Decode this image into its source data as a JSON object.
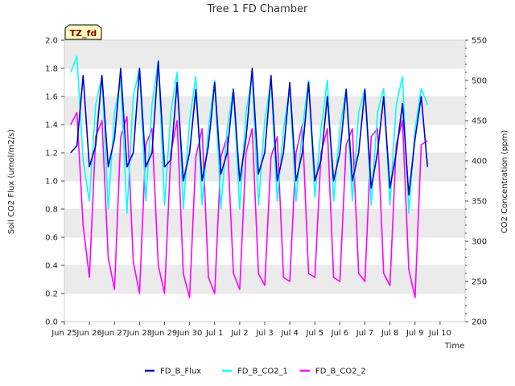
{
  "chart_data": {
    "type": "line",
    "title": "Tree 1 FD Chamber",
    "badge": "TZ_fd",
    "xlabel": "Time",
    "ylabel_left": "Soil CO2 Flux (umol/m2/s)",
    "ylabel_right": "CO2 Concentration (ppm)",
    "xlim": [
      0,
      16
    ],
    "ylim_left": [
      0.0,
      2.0
    ],
    "ylim_right": [
      200,
      550
    ],
    "x_ticks": [
      {
        "x": 0,
        "label": "Jun 25"
      },
      {
        "x": 1,
        "label": "Jun 26"
      },
      {
        "x": 2,
        "label": "Jun 27"
      },
      {
        "x": 3,
        "label": "Jun 28"
      },
      {
        "x": 4,
        "label": "Jun 29"
      },
      {
        "x": 5,
        "label": "Jun 30"
      },
      {
        "x": 6,
        "label": "Jul 1"
      },
      {
        "x": 7,
        "label": "Jul 2"
      },
      {
        "x": 8,
        "label": "Jul 3"
      },
      {
        "x": 9,
        "label": "Jul 4"
      },
      {
        "x": 10,
        "label": "Jul 5"
      },
      {
        "x": 11,
        "label": "Jul 6"
      },
      {
        "x": 12,
        "label": "Jul 7"
      },
      {
        "x": 13,
        "label": "Jul 8"
      },
      {
        "x": 14,
        "label": "Jul 9"
      },
      {
        "x": 15,
        "label": "Jul 10"
      }
    ],
    "y_left_ticks": [
      "0.0",
      "0.2",
      "0.4",
      "0.6",
      "0.8",
      "1.0",
      "1.2",
      "1.4",
      "1.6",
      "1.8",
      "2.0"
    ],
    "y_right_ticks": [
      "200",
      "250",
      "300",
      "350",
      "400",
      "450",
      "500",
      "550"
    ],
    "grid": "horizontal",
    "legend_position": "bottom-center",
    "colors": {
      "FD_B_Flux": "#0000cc",
      "FD_B_CO2_1": "#00ffff",
      "FD_B_CO2_2": "#ff00ff",
      "band": "#ebebeb",
      "badge_fill": "#ffffc0"
    },
    "series": [
      {
        "name": "FD_B_Flux",
        "axis": "left",
        "x": [
          0.25,
          0.5,
          0.75,
          1.0,
          1.25,
          1.5,
          1.75,
          2.0,
          2.25,
          2.5,
          2.75,
          3.0,
          3.25,
          3.5,
          3.75,
          4.0,
          4.25,
          4.5,
          4.75,
          5.0,
          5.25,
          5.5,
          5.75,
          6.0,
          6.25,
          6.5,
          6.75,
          7.0,
          7.25,
          7.5,
          7.75,
          8.0,
          8.25,
          8.5,
          8.75,
          9.0,
          9.25,
          9.5,
          9.75,
          10.0,
          10.25,
          10.5,
          10.75,
          11.0,
          11.25,
          11.5,
          11.75,
          12.0,
          12.25,
          12.5,
          12.75,
          13.0,
          13.25,
          13.5,
          13.75,
          14.0,
          14.25,
          14.5
        ],
        "values": [
          1.2,
          1.25,
          1.75,
          1.1,
          1.25,
          1.75,
          1.1,
          1.3,
          1.8,
          1.1,
          1.2,
          1.8,
          1.1,
          1.2,
          1.85,
          1.1,
          1.15,
          1.7,
          1.0,
          1.2,
          1.65,
          1.0,
          1.25,
          1.7,
          1.05,
          1.2,
          1.65,
          1.0,
          1.3,
          1.8,
          1.05,
          1.2,
          1.75,
          1.0,
          1.2,
          1.7,
          1.0,
          1.2,
          1.7,
          1.0,
          1.15,
          1.6,
          1.0,
          1.2,
          1.65,
          1.0,
          1.2,
          1.65,
          0.95,
          1.2,
          1.6,
          0.95,
          1.2,
          1.55,
          0.9,
          1.3,
          1.6,
          1.1
        ]
      },
      {
        "name": "FD_B_CO2_1",
        "axis": "right",
        "x": [
          0.25,
          0.5,
          0.75,
          1.0,
          1.25,
          1.5,
          1.75,
          2.0,
          2.25,
          2.5,
          2.75,
          3.0,
          3.25,
          3.5,
          3.75,
          4.0,
          4.25,
          4.5,
          4.75,
          5.0,
          5.25,
          5.5,
          5.75,
          6.0,
          6.25,
          6.5,
          6.75,
          7.0,
          7.25,
          7.5,
          7.75,
          8.0,
          8.25,
          8.5,
          8.75,
          9.0,
          9.25,
          9.5,
          9.75,
          10.0,
          10.25,
          10.5,
          10.75,
          11.0,
          11.25,
          11.5,
          11.75,
          12.0,
          12.25,
          12.5,
          12.75,
          13.0,
          13.25,
          13.5,
          13.75,
          14.0,
          14.25,
          14.5
        ],
        "values": [
          510,
          530,
          400,
          350,
          470,
          505,
          340,
          460,
          500,
          335,
          480,
          515,
          350,
          470,
          525,
          345,
          460,
          510,
          340,
          450,
          505,
          345,
          440,
          500,
          340,
          440,
          490,
          340,
          460,
          505,
          345,
          450,
          500,
          350,
          440,
          490,
          350,
          440,
          500,
          355,
          440,
          500,
          350,
          440,
          490,
          350,
          460,
          490,
          345,
          460,
          490,
          345,
          470,
          505,
          335,
          440,
          490,
          470
        ]
      },
      {
        "name": "FD_B_CO2_2",
        "axis": "right",
        "x": [
          0.25,
          0.5,
          0.75,
          1.0,
          1.25,
          1.5,
          1.75,
          2.0,
          2.25,
          2.5,
          2.75,
          3.0,
          3.25,
          3.5,
          3.75,
          4.0,
          4.25,
          4.5,
          4.75,
          5.0,
          5.25,
          5.5,
          5.75,
          6.0,
          6.25,
          6.5,
          6.75,
          7.0,
          7.25,
          7.5,
          7.75,
          8.0,
          8.25,
          8.5,
          8.75,
          9.0,
          9.25,
          9.5,
          9.75,
          10.0,
          10.25,
          10.5,
          10.75,
          11.0,
          11.25,
          11.5,
          11.75,
          12.0,
          12.25,
          12.5,
          12.75,
          13.0,
          13.25,
          13.5,
          13.75,
          14.0,
          14.25,
          14.5
        ],
        "values": [
          445,
          460,
          320,
          255,
          430,
          450,
          280,
          240,
          430,
          455,
          275,
          235,
          420,
          440,
          270,
          235,
          410,
          450,
          260,
          230,
          405,
          440,
          255,
          235,
          405,
          430,
          260,
          240,
          410,
          440,
          260,
          245,
          405,
          430,
          255,
          250,
          410,
          445,
          260,
          255,
          410,
          440,
          255,
          250,
          420,
          440,
          260,
          250,
          430,
          440,
          260,
          245,
          420,
          450,
          265,
          230,
          420,
          425
        ]
      }
    ],
    "legend": [
      "FD_B_Flux",
      "FD_B_CO2_1",
      "FD_B_CO2_2"
    ]
  }
}
